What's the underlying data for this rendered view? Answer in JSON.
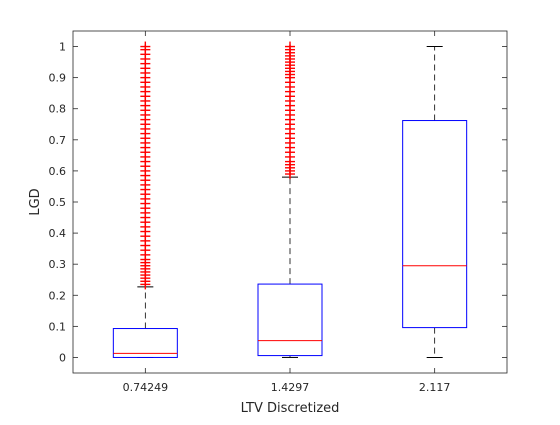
{
  "chart_data": {
    "type": "box",
    "xlabel": "LTV Discretized",
    "ylabel": "LGD",
    "ylim": [
      -0.05,
      1.05
    ],
    "yticks": [
      0,
      0.1,
      0.2,
      0.3,
      0.4,
      0.5,
      0.6,
      0.7,
      0.8,
      0.9,
      1
    ],
    "grid": false,
    "colors": {
      "box": "#0000ff",
      "median": "#ff0000",
      "whisker": "#000000",
      "outlier": "#ff0000",
      "axis": "#262626"
    },
    "categories": [
      "0.74249",
      "1.4297",
      "2.117"
    ],
    "boxes": [
      {
        "category": "0.74249",
        "whisker_low": 0,
        "q1": 0,
        "median": 0.013,
        "q3": 0.093,
        "whisker_high": 0.227,
        "outliers": [
          0.235,
          0.245,
          0.255,
          0.265,
          0.275,
          0.285,
          0.295,
          0.305,
          0.315,
          0.33,
          0.345,
          0.36,
          0.375,
          0.39,
          0.405,
          0.42,
          0.435,
          0.45,
          0.465,
          0.48,
          0.495,
          0.51,
          0.525,
          0.54,
          0.555,
          0.57,
          0.585,
          0.6,
          0.615,
          0.63,
          0.645,
          0.66,
          0.675,
          0.69,
          0.705,
          0.72,
          0.735,
          0.75,
          0.765,
          0.78,
          0.795,
          0.81,
          0.825,
          0.84,
          0.855,
          0.87,
          0.885,
          0.9,
          0.915,
          0.93,
          0.945,
          0.96,
          0.975,
          0.99,
          1.0
        ]
      },
      {
        "category": "1.4297",
        "whisker_low": 0,
        "q1": 0.006,
        "median": 0.054,
        "q3": 0.236,
        "whisker_high": 0.58,
        "outliers": [
          0.59,
          0.6,
          0.61,
          0.62,
          0.63,
          0.645,
          0.66,
          0.675,
          0.69,
          0.705,
          0.72,
          0.735,
          0.75,
          0.765,
          0.78,
          0.795,
          0.81,
          0.825,
          0.84,
          0.855,
          0.87,
          0.885,
          0.9,
          0.91,
          0.92,
          0.93,
          0.94,
          0.95,
          0.96,
          0.97,
          0.98,
          0.99,
          1.0
        ]
      },
      {
        "category": "2.117",
        "whisker_low": 0,
        "q1": 0.096,
        "median": 0.295,
        "q3": 0.762,
        "whisker_high": 1.0,
        "outliers": []
      }
    ]
  }
}
